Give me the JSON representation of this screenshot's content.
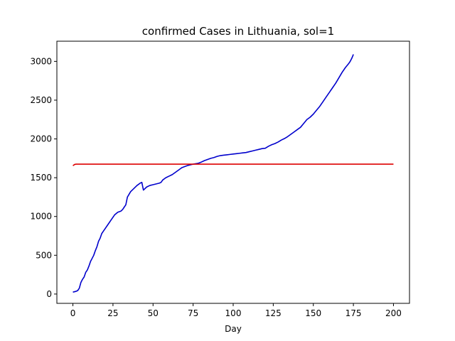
{
  "chart_data": {
    "type": "line",
    "title": "confirmed Cases in Lithuania, sol=1",
    "xlabel": "Day",
    "ylabel": "",
    "xlim": [
      -10,
      210
    ],
    "ylim": [
      -120,
      3260
    ],
    "xticks": [
      0,
      25,
      50,
      75,
      100,
      125,
      150,
      175,
      200
    ],
    "yticks": [
      0,
      500,
      1000,
      1500,
      2000,
      2500,
      3000
    ],
    "grid": false,
    "legend": "none",
    "series": [
      {
        "color": "#0000cc",
        "x": [
          0,
          2,
          3,
          4,
          5,
          6,
          7,
          8,
          9,
          10,
          11,
          12,
          13,
          14,
          15,
          16,
          17,
          18,
          19,
          20,
          22,
          24,
          26,
          28,
          30,
          31,
          32,
          33,
          34,
          36,
          38,
          40,
          42,
          43,
          44,
          46,
          48,
          50,
          52,
          54,
          55,
          56,
          58,
          60,
          62,
          64,
          66,
          68,
          70,
          72,
          74,
          76,
          78,
          80,
          82,
          84,
          86,
          88,
          90,
          92,
          94,
          96,
          98,
          100,
          102,
          104,
          106,
          108,
          110,
          112,
          114,
          116,
          118,
          120,
          122,
          124,
          126,
          128,
          130,
          132,
          134,
          136,
          138,
          140,
          142,
          144,
          146,
          148,
          150,
          152,
          154,
          156,
          158,
          160,
          162,
          164,
          166,
          168,
          170,
          172,
          173,
          174,
          175
        ],
        "y": [
          25,
          35,
          45,
          75,
          150,
          190,
          220,
          280,
          310,
          360,
          420,
          460,
          500,
          560,
          610,
          680,
          720,
          780,
          810,
          840,
          900,
          960,
          1020,
          1055,
          1070,
          1090,
          1120,
          1150,
          1250,
          1320,
          1360,
          1400,
          1430,
          1440,
          1340,
          1380,
          1400,
          1410,
          1420,
          1430,
          1440,
          1470,
          1500,
          1520,
          1540,
          1570,
          1600,
          1630,
          1645,
          1660,
          1670,
          1678,
          1685,
          1700,
          1720,
          1735,
          1750,
          1760,
          1775,
          1785,
          1790,
          1795,
          1800,
          1805,
          1810,
          1815,
          1820,
          1825,
          1835,
          1845,
          1855,
          1865,
          1875,
          1880,
          1905,
          1925,
          1940,
          1960,
          1985,
          2005,
          2030,
          2060,
          2090,
          2120,
          2150,
          2200,
          2250,
          2280,
          2320,
          2370,
          2420,
          2480,
          2540,
          2600,
          2660,
          2720,
          2790,
          2860,
          2920,
          2970,
          3000,
          3040,
          3090
        ]
      },
      {
        "color": "#dd0000",
        "x": [
          0,
          1,
          2,
          200
        ],
        "y": [
          1655,
          1670,
          1675,
          1675
        ]
      }
    ]
  }
}
